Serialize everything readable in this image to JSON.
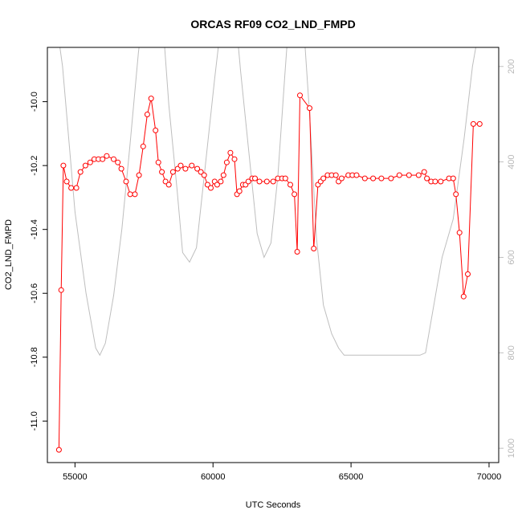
{
  "chart_data": {
    "type": "line",
    "title": "ORCAS RF09 CO2_LND_FMPD",
    "xlabel": "UTC Seconds",
    "ylabel": "CO2_LND_FMPD",
    "xlim": [
      54000,
      70350
    ],
    "ylim": [
      -11.13,
      -9.83
    ],
    "y2lim": [
      1030,
      160
    ],
    "x_ticks": [
      55000,
      60000,
      65000,
      70000
    ],
    "x_tick_labels": [
      "55000",
      "60000",
      "65000",
      "70000"
    ],
    "y_ticks": [
      -11.0,
      -10.8,
      -10.6,
      -10.4,
      -10.2,
      -10.0
    ],
    "y_tick_labels": [
      "-11.0",
      "-10.8",
      "-10.6",
      "-10.4",
      "-10.2",
      "-10.0"
    ],
    "y2_ticks": [
      200,
      400,
      600,
      800,
      1000
    ],
    "y2_tick_labels": [
      "200",
      "400",
      "600",
      "800",
      "1000"
    ],
    "colors": {
      "co2": "#ff0000",
      "pressure": "#bebebe",
      "axis": "#000000"
    },
    "series": [
      {
        "x": [
          54420,
          54500,
          54580,
          54700,
          54860,
          55050,
          55200,
          55380,
          55550,
          55700,
          55850,
          56000,
          56150,
          56400,
          56550,
          56680,
          56850,
          57000,
          57170,
          57320,
          57470,
          57620,
          57760,
          57920,
          58020,
          58150,
          58280,
          58400,
          58550,
          58720,
          58830,
          59000,
          59230,
          59430,
          59560,
          59680,
          59800,
          59920,
          60060,
          60150,
          60280,
          60380,
          60500,
          60630,
          60780,
          60870,
          60960,
          61080,
          61180,
          61280,
          61420,
          61520,
          61680,
          61950,
          62180,
          62350,
          62500,
          62620,
          62800,
          62950,
          63050,
          63150,
          63500,
          63650,
          63800,
          63900,
          64000,
          64150,
          64300,
          64450,
          64550,
          64660,
          64900,
          65050,
          65200,
          65500,
          65800,
          66100,
          66450,
          66750,
          67100,
          67450,
          67650,
          67750,
          67900,
          68050,
          68250,
          68550,
          68700,
          68800,
          68930,
          69080,
          69230,
          69430,
          69660
        ],
        "y": [
          -11.09,
          -10.59,
          -10.2,
          -10.25,
          -10.27,
          -10.27,
          -10.22,
          -10.2,
          -10.19,
          -10.18,
          -10.18,
          -10.18,
          -10.17,
          -10.18,
          -10.19,
          -10.21,
          -10.25,
          -10.29,
          -10.29,
          -10.23,
          -10.14,
          -10.04,
          -9.99,
          -10.09,
          -10.19,
          -10.22,
          -10.25,
          -10.26,
          -10.22,
          -10.21,
          -10.2,
          -10.21,
          -10.2,
          -10.21,
          -10.22,
          -10.23,
          -10.26,
          -10.27,
          -10.25,
          -10.26,
          -10.25,
          -10.23,
          -10.19,
          -10.16,
          -10.18,
          -10.29,
          -10.28,
          -10.26,
          -10.26,
          -10.25,
          -10.24,
          -10.24,
          -10.25,
          -10.25,
          -10.25,
          -10.24,
          -10.24,
          -10.24,
          -10.26,
          -10.29,
          -10.47,
          -9.98,
          -10.02,
          -10.46,
          -10.26,
          -10.25,
          -10.24,
          -10.23,
          -10.23,
          -10.23,
          -10.25,
          -10.24,
          -10.23,
          -10.23,
          -10.23,
          -10.24,
          -10.24,
          -10.24,
          -10.24,
          -10.23,
          -10.23,
          -10.23,
          -10.22,
          -10.24,
          -10.25,
          -10.25,
          -10.25,
          -10.24,
          -10.24,
          -10.29,
          -10.41,
          -10.61,
          -10.54,
          -10.07,
          -10.07
        ]
      },
      {
        "x": [
          54000,
          54550,
          55000,
          55400,
          55750,
          55900,
          56100,
          56400,
          56700,
          57000,
          57300,
          57700,
          58100,
          58400,
          58700,
          58900,
          59150,
          59400,
          59700,
          60050,
          60350,
          60550,
          60800,
          61000,
          61300,
          61600,
          61850,
          62100,
          62350,
          62600,
          62900,
          63050,
          63200,
          63500,
          63750,
          64000,
          64300,
          64550,
          64750,
          64900,
          65100,
          65500,
          66000,
          66500,
          67000,
          67500,
          67700,
          68000,
          68300,
          68700,
          69100,
          69400,
          69700,
          70350
        ],
        "y": [
          -30,
          200,
          505,
          675,
          790,
          805,
          780,
          680,
          540,
          360,
          170,
          -20,
          40,
          280,
          460,
          590,
          610,
          580,
          420,
          230,
          80,
          -60,
          80,
          210,
          380,
          550,
          600,
          570,
          430,
          220,
          -20,
          -40,
          40,
          300,
          560,
          700,
          760,
          790,
          805,
          805,
          805,
          805,
          805,
          805,
          805,
          805,
          800,
          700,
          600,
          520,
          350,
          200,
          100,
          -30
        ]
      }
    ]
  }
}
